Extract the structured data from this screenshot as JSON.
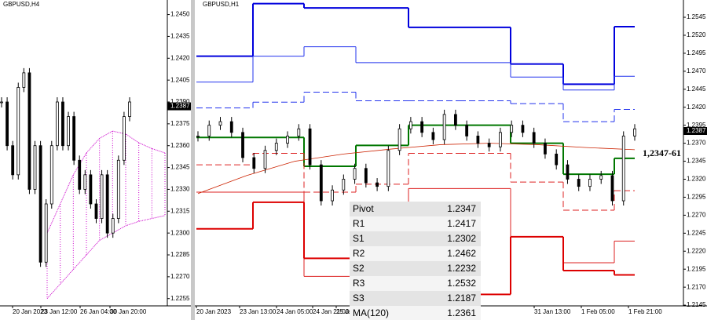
{
  "charts": [
    {
      "type": "candlestick",
      "title": "GBPUSD,H4",
      "ylim": [
        1.225,
        1.246
      ],
      "yticks": [
        {
          "value": 1.245,
          "label": "1.2450"
        },
        {
          "value": 1.2435,
          "label": "1.2435"
        },
        {
          "value": 1.242,
          "label": "1.2420"
        },
        {
          "value": 1.2405,
          "label": "1.2405"
        },
        {
          "value": 1.239,
          "label": "1.2390"
        },
        {
          "value": 1.2375,
          "label": "1.2375"
        },
        {
          "value": 1.236,
          "label": "1.2360"
        },
        {
          "value": 1.2345,
          "label": "1.2345"
        },
        {
          "value": 1.233,
          "label": "1.2330"
        },
        {
          "value": 1.2315,
          "label": "1.2315"
        },
        {
          "value": 1.23,
          "label": "1.2300"
        },
        {
          "value": 1.2285,
          "label": "1.2285"
        },
        {
          "value": 1.227,
          "label": "1.2270"
        },
        {
          "value": 1.2255,
          "label": "1.2255"
        }
      ],
      "xticks": [
        "20 Jan 2023",
        "23 Jan 12:00",
        "26 Jan 04:00",
        "30 Jan 20:00"
      ],
      "last": {
        "value": 1.2387,
        "label": "1.2387"
      },
      "close": [
        1.239,
        1.236,
        1.234,
        1.24,
        1.241,
        1.233,
        1.236,
        1.228,
        1.232,
        1.236,
        1.239,
        1.236,
        1.238,
        1.235,
        1.233,
        1.234,
        1.232,
        1.231,
        1.234,
        1.23,
        1.231,
        1.235,
        1.238,
        1.239
      ],
      "color": "#000000",
      "cloud": {
        "color": "#cc00cc",
        "upper": [
          1.23,
          1.232,
          1.234,
          1.2355,
          1.2365,
          1.237,
          1.2368,
          1.2362,
          1.2358,
          1.2355
        ],
        "lower": [
          1.2255,
          1.2265,
          1.2275,
          1.2285,
          1.2295,
          1.23,
          1.2305,
          1.2308,
          1.231,
          1.2312
        ]
      }
    },
    {
      "type": "candlestick",
      "title": "GBPUSD,H1",
      "ylim": [
        1.2144,
        1.2569
      ],
      "yticks": [
        {
          "value": 1.2545,
          "label": "1.2545"
        },
        {
          "value": 1.252,
          "label": "1.2520"
        },
        {
          "value": 1.2495,
          "label": "1.2495"
        },
        {
          "value": 1.247,
          "label": "1.2470"
        },
        {
          "value": 1.2445,
          "label": "1.2445"
        },
        {
          "value": 1.242,
          "label": "1.2420"
        },
        {
          "value": 1.2395,
          "label": "1.2395"
        },
        {
          "value": 1.237,
          "label": "1.2370"
        },
        {
          "value": 1.2345,
          "label": "1.2345"
        },
        {
          "value": 1.232,
          "label": "1.2320"
        },
        {
          "value": 1.2295,
          "label": "1.2295"
        },
        {
          "value": 1.227,
          "label": "1.2270"
        },
        {
          "value": 1.2245,
          "label": "1.2245"
        },
        {
          "value": 1.222,
          "label": "1.2220"
        },
        {
          "value": 1.2195,
          "label": "1.2195"
        },
        {
          "value": 1.217,
          "label": "1.2170"
        },
        {
          "value": 1.2145,
          "label": "1.2145"
        }
      ],
      "xticks": [
        "20 Jan 2023",
        "23 Jan 13:00",
        "24 Jan 05:00",
        "24 Jan 21:00",
        "25 Jan",
        "31 Jan 13:00",
        "1 Feb 05:00",
        "1 Feb 21:00"
      ],
      "last": {
        "value": 1.2387,
        "label": "1.2387"
      },
      "close": [
        1.238,
        1.2395,
        1.24,
        1.2385,
        1.235,
        1.2335,
        1.236,
        1.237,
        1.238,
        1.239,
        1.234,
        1.229,
        1.2305,
        1.232,
        1.2335,
        1.2315,
        1.231,
        1.236,
        1.239,
        1.24,
        1.2385,
        1.2375,
        1.241,
        1.2395,
        1.238,
        1.237,
        1.2365,
        1.2385,
        1.2395,
        1.2385,
        1.237,
        1.2355,
        1.234,
        1.232,
        1.231,
        1.232,
        1.2325,
        1.229,
        1.238,
        1.239
      ],
      "color": "#000000",
      "ma": {
        "color": "#cc2200",
        "values": [
          1.23,
          1.2325,
          1.2345,
          1.2355,
          1.2362,
          1.2368,
          1.237,
          1.2368,
          1.2364,
          1.2361
        ]
      },
      "levels": [
        {
          "color": "#0000dd",
          "width": 2,
          "dash": false,
          "values": [
            1.2491,
            1.2564,
            1.2558,
            1.2558,
            1.2531,
            1.2531,
            1.248,
            1.2452,
            1.2532
          ]
        },
        {
          "color": "#2233ee",
          "width": 1,
          "dash": false,
          "values": [
            1.2455,
            1.2491,
            1.2504,
            1.2482,
            1.2482,
            1.2482,
            1.2462,
            1.2444,
            1.2463
          ]
        },
        {
          "color": "#2233ee",
          "width": 1,
          "dash": true,
          "values": [
            1.2419,
            1.2427,
            1.2441,
            1.2429,
            1.2429,
            1.2429,
            1.2425,
            1.24,
            1.2417
          ]
        },
        {
          "color": "#007700",
          "width": 2,
          "dash": false,
          "values": [
            1.2378,
            1.2378,
            1.2338,
            1.2367,
            1.2395,
            1.2395,
            1.237,
            1.2327,
            1.2349
          ]
        },
        {
          "color": "#dd2222",
          "width": 1,
          "dash": true,
          "values": [
            1.234,
            1.2356,
            1.2302,
            1.2313,
            1.2356,
            1.2356,
            1.2316,
            1.2277,
            1.2304
          ]
        },
        {
          "color": "#dd2222",
          "width": 1,
          "dash": false,
          "values": [
            1.2302,
            1.2302,
            1.2185,
            1.2209,
            1.2307,
            1.2307,
            1.224,
            1.2204,
            1.2234
          ]
        },
        {
          "color": "#dd0000",
          "width": 2,
          "dash": false,
          "values": [
            1.2251,
            1.2288,
            1.221,
            1.216,
            1.216,
            1.216,
            1.224,
            1.2193,
            1.2187
          ]
        }
      ],
      "annotation": "1,2347-61",
      "table": {
        "rows": [
          [
            "Pivot",
            "1.2347"
          ],
          [
            "R1",
            "1.2417"
          ],
          [
            "S1",
            "1.2302"
          ],
          [
            "R2",
            "1.2462"
          ],
          [
            "S2",
            "1.2232"
          ],
          [
            "R3",
            "1.2532"
          ],
          [
            "S3",
            "1.2187"
          ],
          [
            "MA(120)",
            "1.2361"
          ]
        ]
      }
    }
  ]
}
